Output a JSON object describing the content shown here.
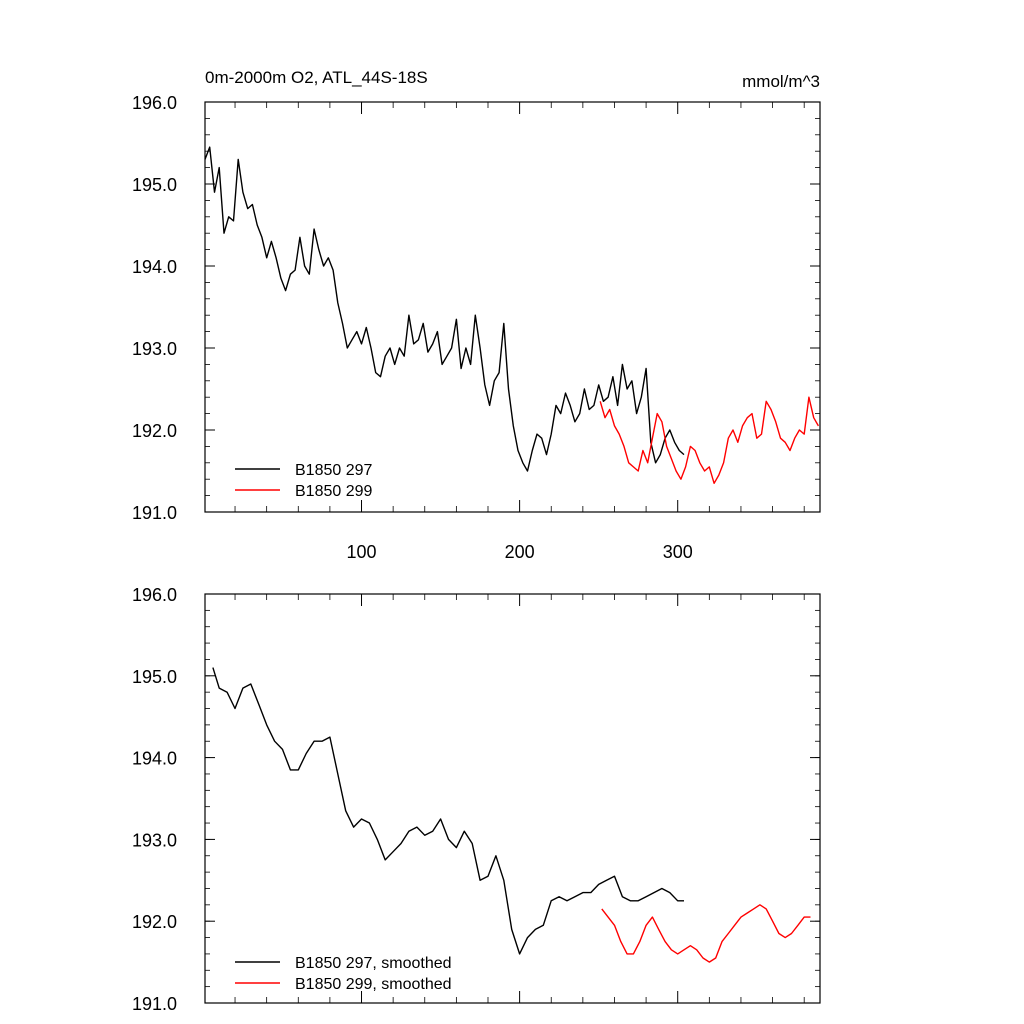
{
  "chart_data": [
    {
      "type": "line",
      "title": "0m-2000m O2, ATL_44S-18S",
      "units": "mmol/m^3",
      "xlim": [
        1,
        390
      ],
      "ylim": [
        191.0,
        196.0
      ],
      "x_ticks": [
        100,
        200,
        300
      ],
      "x_tick_labels": [
        "100",
        "200",
        "300"
      ],
      "y_ticks": [
        191.0,
        192.0,
        193.0,
        194.0,
        195.0,
        196.0
      ],
      "y_tick_labels": [
        "191.0",
        "192.0",
        "193.0",
        "194.0",
        "195.0",
        "196.0"
      ],
      "legend_placement": "bottom-left",
      "series": [
        {
          "name": "B1850 297",
          "color": "#000000",
          "x": [
            1,
            4,
            7,
            10,
            13,
            16,
            19,
            22,
            25,
            28,
            31,
            34,
            37,
            40,
            43,
            46,
            49,
            52,
            55,
            58,
            61,
            64,
            67,
            70,
            73,
            76,
            79,
            82,
            85,
            88,
            91,
            94,
            97,
            100,
            103,
            106,
            109,
            112,
            115,
            118,
            121,
            124,
            127,
            130,
            133,
            136,
            139,
            142,
            145,
            148,
            151,
            154,
            157,
            160,
            163,
            166,
            169,
            172,
            175,
            178,
            181,
            184,
            187,
            190,
            193,
            196,
            199,
            202,
            205,
            208,
            211,
            214,
            217,
            220,
            223,
            226,
            229,
            232,
            235,
            238,
            241,
            244,
            247,
            250,
            253,
            256,
            259,
            262,
            265,
            268,
            271,
            274,
            277,
            280,
            283,
            286,
            289,
            292,
            295,
            298,
            301,
            304
          ],
          "y": [
            195.3,
            195.45,
            194.9,
            195.2,
            194.4,
            194.6,
            194.55,
            195.3,
            194.9,
            194.7,
            194.75,
            194.5,
            194.35,
            194.1,
            194.3,
            194.1,
            193.85,
            193.7,
            193.9,
            193.95,
            194.35,
            194.0,
            193.9,
            194.45,
            194.2,
            194.0,
            194.1,
            193.95,
            193.55,
            193.3,
            193.0,
            193.1,
            193.2,
            193.05,
            193.25,
            193.0,
            192.7,
            192.65,
            192.9,
            193.0,
            192.8,
            193.0,
            192.9,
            193.4,
            193.05,
            193.1,
            193.3,
            192.95,
            193.05,
            193.2,
            192.8,
            192.9,
            193.0,
            193.35,
            192.75,
            193.0,
            192.8,
            193.4,
            193.0,
            192.55,
            192.3,
            192.6,
            192.7,
            193.3,
            192.5,
            192.05,
            191.75,
            191.6,
            191.5,
            191.75,
            191.95,
            191.9,
            191.7,
            191.95,
            192.3,
            192.2,
            192.45,
            192.3,
            192.1,
            192.2,
            192.5,
            192.25,
            192.3,
            192.55,
            192.35,
            192.4,
            192.65,
            192.3,
            192.8,
            192.5,
            192.6,
            192.2,
            192.4,
            192.75,
            191.85,
            191.6,
            191.7,
            191.9,
            192.0,
            191.85,
            191.75,
            191.7
          ]
        },
        {
          "name": "B1850 299",
          "color": "#ff0000",
          "x": [
            251,
            254,
            257,
            260,
            263,
            266,
            269,
            272,
            275,
            278,
            281,
            284,
            287,
            290,
            293,
            296,
            299,
            302,
            305,
            308,
            311,
            314,
            317,
            320,
            323,
            326,
            329,
            332,
            335,
            338,
            341,
            344,
            347,
            350,
            353,
            356,
            359,
            362,
            365,
            368,
            371,
            374,
            377,
            380,
            383,
            386,
            389
          ],
          "y": [
            192.35,
            192.15,
            192.25,
            192.05,
            191.95,
            191.8,
            191.6,
            191.55,
            191.5,
            191.75,
            191.6,
            191.9,
            192.2,
            192.1,
            191.8,
            191.65,
            191.5,
            191.4,
            191.55,
            191.8,
            191.75,
            191.6,
            191.5,
            191.55,
            191.35,
            191.45,
            191.6,
            191.9,
            192.0,
            191.85,
            192.05,
            192.15,
            192.2,
            191.9,
            191.95,
            192.35,
            192.25,
            192.1,
            191.9,
            191.85,
            191.75,
            191.9,
            192.0,
            191.95,
            192.4,
            192.15,
            192.05
          ]
        }
      ]
    },
    {
      "type": "line",
      "xlim": [
        1,
        390
      ],
      "ylim": [
        191.0,
        196.0
      ],
      "y_ticks": [
        191.0,
        192.0,
        193.0,
        194.0,
        195.0,
        196.0
      ],
      "y_tick_labels": [
        "191.0",
        "192.0",
        "193.0",
        "194.0",
        "195.0",
        "196.0"
      ],
      "legend_placement": "bottom-left",
      "series": [
        {
          "name": "B1850 297, smoothed",
          "color": "#000000",
          "x": [
            6,
            10,
            15,
            20,
            25,
            30,
            35,
            40,
            45,
            50,
            55,
            60,
            65,
            70,
            75,
            80,
            85,
            90,
            95,
            100,
            105,
            110,
            115,
            120,
            125,
            130,
            135,
            140,
            145,
            150,
            155,
            160,
            165,
            170,
            175,
            180,
            185,
            190,
            195,
            200,
            205,
            210,
            215,
            220,
            225,
            230,
            235,
            240,
            245,
            250,
            255,
            260,
            265,
            270,
            275,
            280,
            285,
            290,
            295,
            300,
            304
          ],
          "y": [
            195.1,
            194.85,
            194.8,
            194.6,
            194.85,
            194.9,
            194.65,
            194.4,
            194.2,
            194.1,
            193.85,
            193.85,
            194.05,
            194.2,
            194.2,
            194.25,
            193.8,
            193.35,
            193.15,
            193.25,
            193.2,
            193.0,
            192.75,
            192.85,
            192.95,
            193.1,
            193.15,
            193.05,
            193.1,
            193.25,
            193.0,
            192.9,
            193.1,
            192.95,
            192.5,
            192.55,
            192.8,
            192.5,
            191.9,
            191.6,
            191.8,
            191.9,
            191.95,
            192.25,
            192.3,
            192.25,
            192.3,
            192.35,
            192.35,
            192.45,
            192.5,
            192.55,
            192.3,
            192.25,
            192.25,
            192.3,
            192.35,
            192.4,
            192.35,
            192.25,
            192.25
          ]
        },
        {
          "name": "B1850 299, smoothed",
          "color": "#ff0000",
          "x": [
            252,
            256,
            260,
            264,
            268,
            272,
            276,
            280,
            284,
            288,
            292,
            296,
            300,
            304,
            308,
            312,
            316,
            320,
            324,
            328,
            332,
            336,
            340,
            344,
            348,
            352,
            356,
            360,
            364,
            368,
            372,
            376,
            380,
            384
          ],
          "y": [
            192.15,
            192.05,
            191.95,
            191.75,
            191.6,
            191.6,
            191.75,
            191.95,
            192.05,
            191.9,
            191.75,
            191.65,
            191.6,
            191.65,
            191.7,
            191.65,
            191.55,
            191.5,
            191.55,
            191.75,
            191.85,
            191.95,
            192.05,
            192.1,
            192.15,
            192.2,
            192.15,
            192.0,
            191.85,
            191.8,
            191.85,
            191.95,
            192.05,
            192.05
          ]
        }
      ]
    }
  ]
}
